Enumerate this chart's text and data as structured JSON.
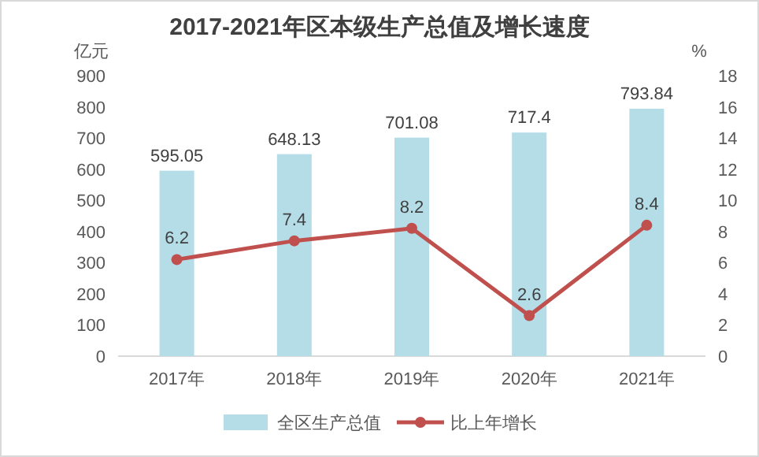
{
  "chart_data": {
    "type": "bar",
    "title": "2017-2021年区本级生产总值及增长速度",
    "ylabel": "亿元",
    "y2label": "%",
    "categories": [
      "2017年",
      "2018年",
      "2019年",
      "2020年",
      "2021年"
    ],
    "series": [
      {
        "name": "全区生产总值",
        "color": "#b4dde8",
        "values": [
          595.05,
          648.13,
          701.08,
          717.4,
          793.84
        ]
      },
      {
        "name": "比上年增长",
        "type": "line",
        "axis": "y2",
        "color": "#c0504d",
        "values": [
          6.2,
          7.4,
          8.2,
          2.6,
          8.4
        ]
      }
    ],
    "ylim": [
      0,
      900
    ],
    "yticks": [
      0,
      100,
      200,
      300,
      400,
      500,
      600,
      700,
      800,
      900
    ],
    "y2lim": [
      0,
      18
    ],
    "y2ticks": [
      0,
      2,
      4,
      6,
      8,
      10,
      12,
      14,
      16,
      18
    ],
    "grid": false,
    "legend": "bottom",
    "marker": "circle",
    "line_style": "solid",
    "data_labels": true
  }
}
